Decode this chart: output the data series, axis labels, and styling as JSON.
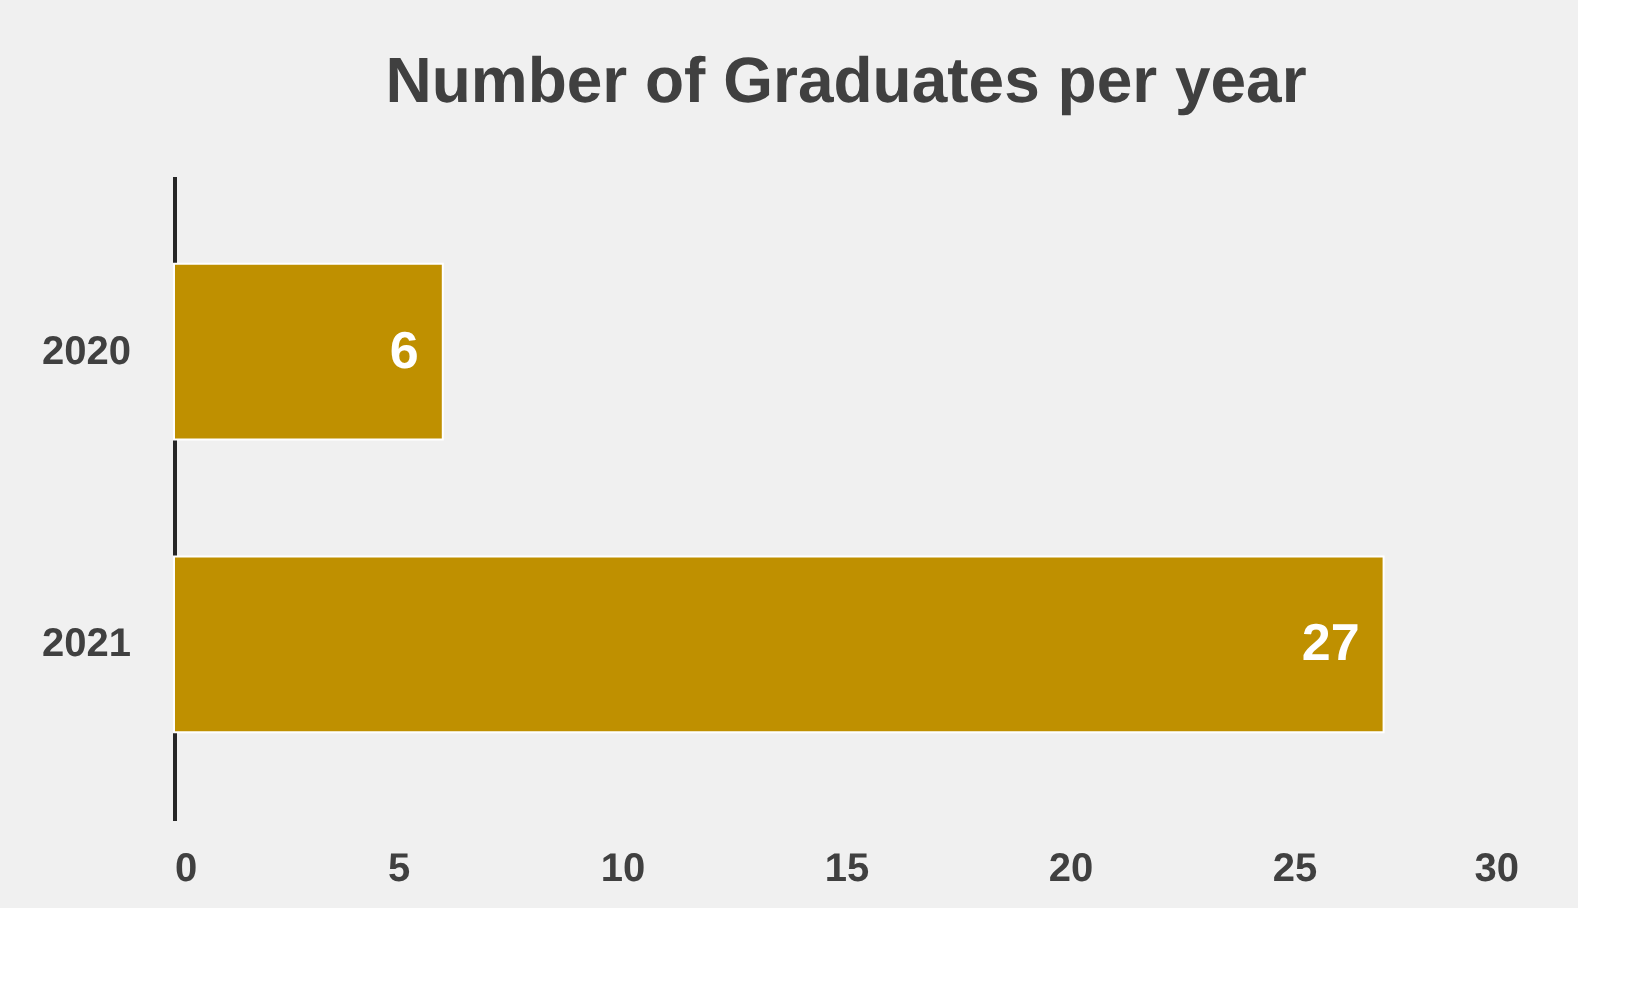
{
  "chart_data": {
    "type": "bar",
    "orientation": "horizontal",
    "title": "Number of Graduates per year",
    "categories": [
      "2020",
      "2021"
    ],
    "values": [
      6,
      27
    ],
    "color": "#bf9000",
    "xlim": [
      0,
      30
    ],
    "xticks": [
      0,
      5,
      10,
      15,
      20,
      25,
      30
    ],
    "grid": false,
    "data_labels": true
  }
}
